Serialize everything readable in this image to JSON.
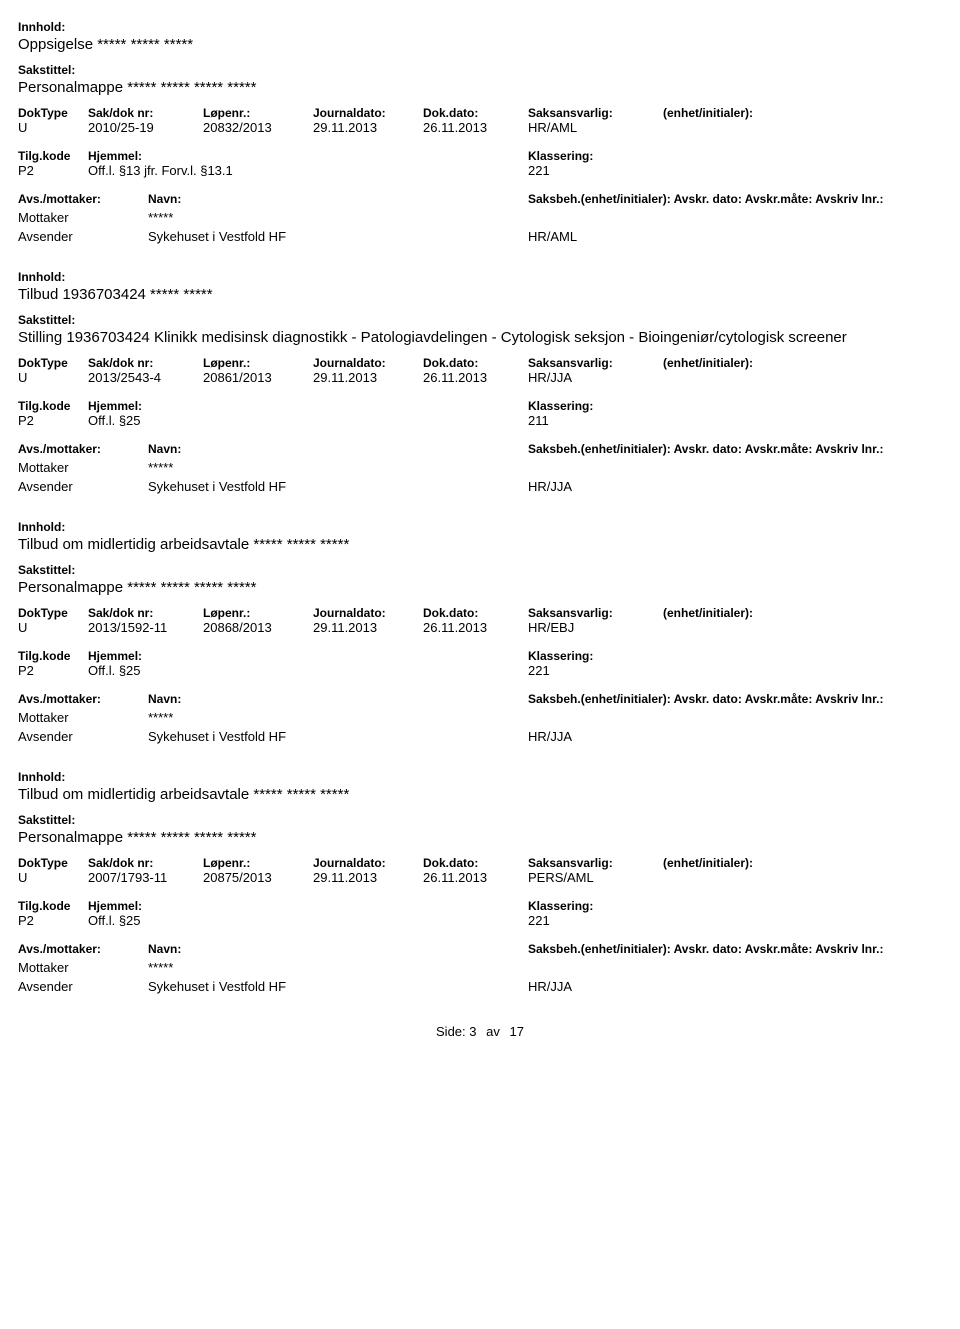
{
  "labels": {
    "innhold": "Innhold:",
    "sakstittel": "Sakstittel:",
    "doktype": "DokType",
    "sakdoknr": "Sak/dok nr:",
    "lopenr": "Løpenr.:",
    "journaldato": "Journaldato:",
    "dokdato": "Dok.dato:",
    "saksansvarlig": "Saksansvarlig:",
    "enhet_initialer": "(enhet/initialer):",
    "tilgkode": "Tilg.kode",
    "hjemmel": "Hjemmel:",
    "klassering": "Klassering:",
    "avs_mottaker": "Avs./mottaker:",
    "navn": "Navn:",
    "saksbeh_line": "Saksbeh.(enhet/initialer): Avskr. dato: Avskr.måte: Avskriv lnr.:",
    "mottaker": "Mottaker",
    "avsender": "Avsender",
    "side": "Side:",
    "av": "av"
  },
  "page": {
    "current": "3",
    "total": "17"
  },
  "records": [
    {
      "innhold": "Oppsigelse ***** ***** *****",
      "sakstittel": "Personalmappe ***** ***** ***** *****",
      "doktype": "U",
      "sakdoknr": "2010/25-19",
      "lopenr": "20832/2013",
      "journaldato": "29.11.2013",
      "dokdato": "26.11.2013",
      "saksansvarlig": "HR/AML",
      "tilgkode": "P2",
      "hjemmel": "Off.l. §13 jfr. Forv.l. §13.1",
      "klassering": "221",
      "mottaker_navn": "*****",
      "avsender_navn": "Sykehuset i Vestfold HF",
      "avsender_saksbeh": "HR/AML"
    },
    {
      "innhold": "Tilbud 1936703424 ***** *****",
      "sakstittel": "Stilling 1936703424 Klinikk medisinsk diagnostikk - Patologiavdelingen - Cytologisk seksjon - Bioingeniør/cytologisk screener",
      "doktype": "U",
      "sakdoknr": "2013/2543-4",
      "lopenr": "20861/2013",
      "journaldato": "29.11.2013",
      "dokdato": "26.11.2013",
      "saksansvarlig": "HR/JJA",
      "tilgkode": "P2",
      "hjemmel": "Off.l. §25",
      "klassering": "211",
      "mottaker_navn": "*****",
      "avsender_navn": "Sykehuset i Vestfold HF",
      "avsender_saksbeh": "HR/JJA"
    },
    {
      "innhold": "Tilbud om midlertidig arbeidsavtale ***** ***** *****",
      "sakstittel": "Personalmappe ***** ***** ***** *****",
      "doktype": "U",
      "sakdoknr": "2013/1592-11",
      "lopenr": "20868/2013",
      "journaldato": "29.11.2013",
      "dokdato": "26.11.2013",
      "saksansvarlig": "HR/EBJ",
      "tilgkode": "P2",
      "hjemmel": "Off.l. §25",
      "klassering": "221",
      "mottaker_navn": "*****",
      "avsender_navn": "Sykehuset i Vestfold HF",
      "avsender_saksbeh": "HR/JJA"
    },
    {
      "innhold": "Tilbud om midlertidig arbeidsavtale ***** ***** *****",
      "sakstittel": "Personalmappe ***** ***** ***** *****",
      "doktype": "U",
      "sakdoknr": "2007/1793-11",
      "lopenr": "20875/2013",
      "journaldato": "29.11.2013",
      "dokdato": "26.11.2013",
      "saksansvarlig": "PERS/AML",
      "tilgkode": "P2",
      "hjemmel": "Off.l. §25",
      "klassering": "221",
      "mottaker_navn": "*****",
      "avsender_navn": "Sykehuset i Vestfold HF",
      "avsender_saksbeh": "HR/JJA"
    }
  ]
}
